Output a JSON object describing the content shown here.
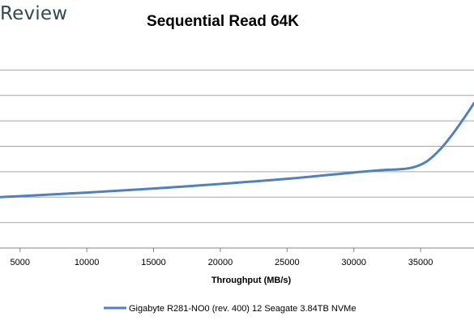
{
  "watermark": {
    "text": "Review"
  },
  "colors": {
    "series": "#4f81bd",
    "grid": "#a6a6a6",
    "axis": "#868686"
  },
  "chart_data": {
    "type": "line",
    "title": "Sequential Read 64K",
    "xlabel": "Throughput (MB/s)",
    "ylabel": "",
    "xlim": [
      3500,
      39000
    ],
    "ylim": [
      0,
      8
    ],
    "x_ticks": [
      5000,
      10000,
      15000,
      20000,
      25000,
      30000,
      35000
    ],
    "x_tick_labels": [
      "5000",
      "10000",
      "15000",
      "20000",
      "25000",
      "30000",
      "35000"
    ],
    "y_gridlines": [
      1,
      2,
      3,
      4,
      5,
      6,
      7
    ],
    "y_tick_labels_visible": false,
    "grid": true,
    "legend": "bottom",
    "series": [
      {
        "name": "Gigabyte R281-NO0 (rev. 400) 12 Seagate 3.84TB NVMe",
        "x": [
          3500,
          5000,
          10000,
          15000,
          20000,
          25000,
          30000,
          32000,
          33500,
          34500,
          35500,
          36500,
          37500,
          38500,
          39000
        ],
        "y": [
          2.0,
          2.04,
          2.18,
          2.34,
          2.52,
          2.72,
          2.97,
          3.06,
          3.1,
          3.18,
          3.42,
          3.9,
          4.55,
          5.3,
          5.7
        ]
      }
    ]
  }
}
